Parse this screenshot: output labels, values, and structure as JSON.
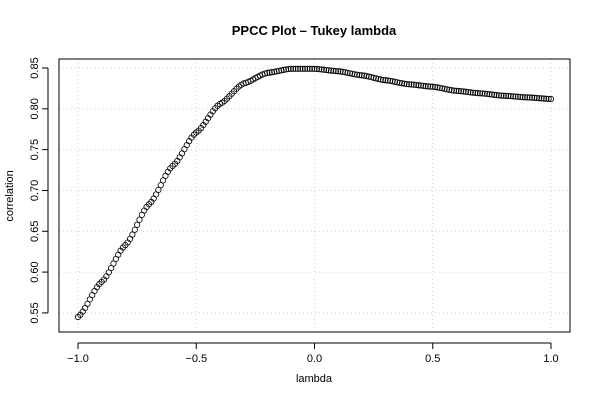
{
  "chart_data": {
    "type": "scatter",
    "title": "PPCC Plot – Tukey lambda",
    "xlabel": "lambda",
    "ylabel": "correlation",
    "xlim": [
      -1.0,
      1.0
    ],
    "ylim": [
      0.545,
      0.85
    ],
    "x_ticks": [
      -1.0,
      -0.5,
      0.0,
      0.5,
      1.0
    ],
    "x_tick_labels": [
      "−1.0",
      "−0.5",
      "0.0",
      "0.5",
      "1.0"
    ],
    "y_ticks": [
      0.55,
      0.6,
      0.65,
      0.7,
      0.75,
      0.8,
      0.85
    ],
    "y_tick_labels": [
      "0.55",
      "0.60",
      "0.65",
      "0.70",
      "0.75",
      "0.80",
      "0.85"
    ],
    "grid": true,
    "marker": "open-circle",
    "x": [
      -1.0,
      -0.9,
      -0.8,
      -0.7,
      -0.6,
      -0.5,
      -0.4,
      -0.3,
      -0.2,
      -0.1,
      -0.05,
      0.0,
      0.1,
      0.2,
      0.3,
      0.4,
      0.5,
      0.6,
      0.7,
      0.8,
      0.9,
      1.0
    ],
    "y": [
      0.545,
      0.588,
      0.633,
      0.683,
      0.73,
      0.771,
      0.806,
      0.831,
      0.844,
      0.849,
      0.849,
      0.849,
      0.846,
      0.841,
      0.835,
      0.83,
      0.827,
      0.822,
      0.819,
      0.816,
      0.814,
      0.812
    ]
  }
}
